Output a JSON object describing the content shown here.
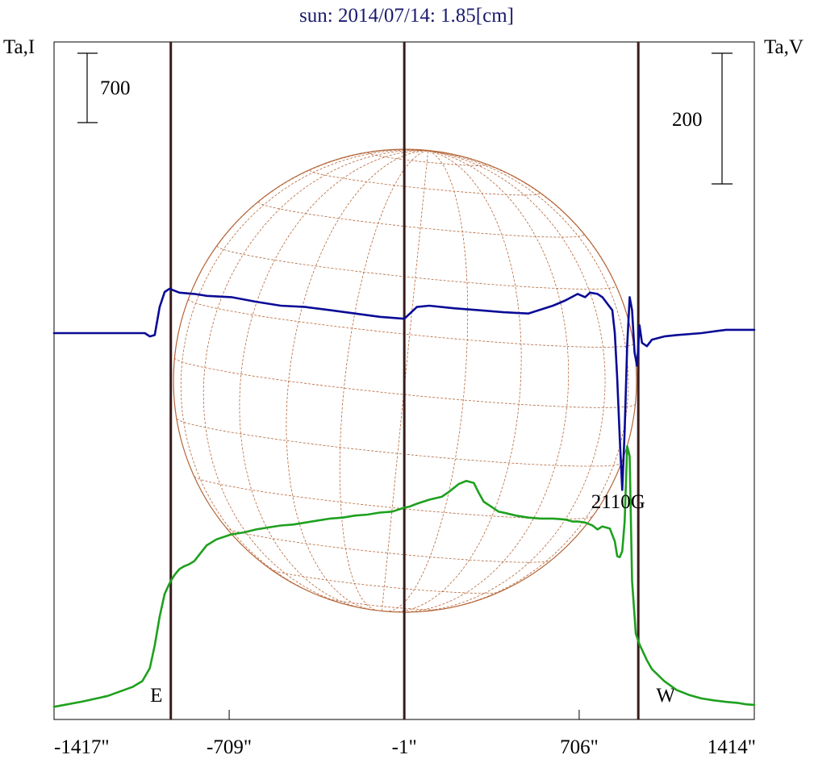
{
  "chart_data": {
    "type": "line",
    "title": "sun: 2014/07/14: 1.85[cm]",
    "left_axis_label": "Ta,I",
    "right_axis_label": "Ta,V",
    "left_scale_label": "700",
    "right_scale_label": "200",
    "x_tick_labels": [
      "-1417\"",
      "-709\"",
      "-1\"",
      "706\"",
      "1414\""
    ],
    "xlim": [
      -1417,
      1414
    ],
    "x_ticks": [
      -709,
      -1,
      706
    ],
    "markers": [
      {
        "label": "E",
        "x": -945
      },
      {
        "label": "",
        "x": -1
      },
      {
        "label": "W",
        "x": 945
      }
    ],
    "annotation": "2110G",
    "annotation_x": 880,
    "grid": false,
    "colors": {
      "title": "#1a1a6e",
      "intensity": "#1ea01e",
      "polarization": "#0a0a96",
      "markers": "#3a1a1a",
      "sun_grid": "#b5673a"
    },
    "series": [
      {
        "key": "intensity",
        "axis": "left",
        "x": [
          -1417,
          -1300,
          -1200,
          -1100,
          -1060,
          -1030,
          -1010,
          -990,
          -970,
          -955,
          -945,
          -930,
          -910,
          -890,
          -870,
          -850,
          -800,
          -760,
          -700,
          -650,
          -600,
          -550,
          -500,
          -450,
          -400,
          -350,
          -300,
          -250,
          -200,
          -150,
          -100,
          -50,
          -1,
          20,
          50,
          100,
          150,
          180,
          220,
          250,
          280,
          300,
          320,
          350,
          380,
          400,
          450,
          500,
          550,
          600,
          650,
          680,
          700,
          730,
          760,
          780,
          800,
          830,
          850,
          860,
          870,
          880,
          890,
          900,
          910,
          920,
          935,
          950,
          980,
          1000,
          1050,
          1100,
          1150,
          1200,
          1250,
          1300,
          1350,
          1380,
          1414
        ],
        "y": [
          30,
          85,
          140,
          230,
          290,
          420,
          650,
          940,
          1170,
          1250,
          1300,
          1360,
          1420,
          1450,
          1470,
          1500,
          1660,
          1720,
          1770,
          1790,
          1820,
          1840,
          1860,
          1870,
          1890,
          1910,
          1930,
          1940,
          1960,
          1970,
          1990,
          2000,
          2040,
          2050,
          2080,
          2120,
          2150,
          2200,
          2280,
          2310,
          2290,
          2190,
          2100,
          2050,
          2000,
          1990,
          1960,
          1940,
          1930,
          1930,
          1920,
          1900,
          1900,
          1890,
          1860,
          1820,
          1850,
          1830,
          1700,
          1550,
          1540,
          1600,
          1900,
          2660,
          2560,
          1300,
          770,
          660,
          500,
          410,
          290,
          200,
          150,
          115,
          95,
          80,
          68,
          55,
          50
        ]
      },
      {
        "key": "polarization",
        "axis": "right",
        "x": [
          -1417,
          -1300,
          -1050,
          -1030,
          -1010,
          -990,
          -970,
          -950,
          -930,
          -910,
          -850,
          -800,
          -700,
          -600,
          -500,
          -400,
          -300,
          -200,
          -100,
          -1,
          50,
          100,
          200,
          300,
          400,
          500,
          600,
          650,
          700,
          730,
          750,
          780,
          800,
          820,
          840,
          850,
          860,
          870,
          880,
          890,
          900,
          910,
          920,
          930,
          940,
          950,
          960,
          980,
          1000,
          1050,
          1100,
          1200,
          1300,
          1414
        ],
        "y": [
          0,
          0,
          0,
          -5,
          -3,
          40,
          63,
          68,
          65,
          62,
          60,
          57,
          55,
          48,
          42,
          40,
          35,
          30,
          25,
          22,
          40,
          42,
          38,
          35,
          32,
          30,
          42,
          50,
          60,
          55,
          62,
          60,
          55,
          45,
          35,
          0,
          -70,
          -160,
          -240,
          -150,
          -20,
          55,
          35,
          -30,
          -50,
          12,
          -15,
          -20,
          -10,
          -5,
          -3,
          0,
          5,
          5
        ]
      }
    ]
  }
}
